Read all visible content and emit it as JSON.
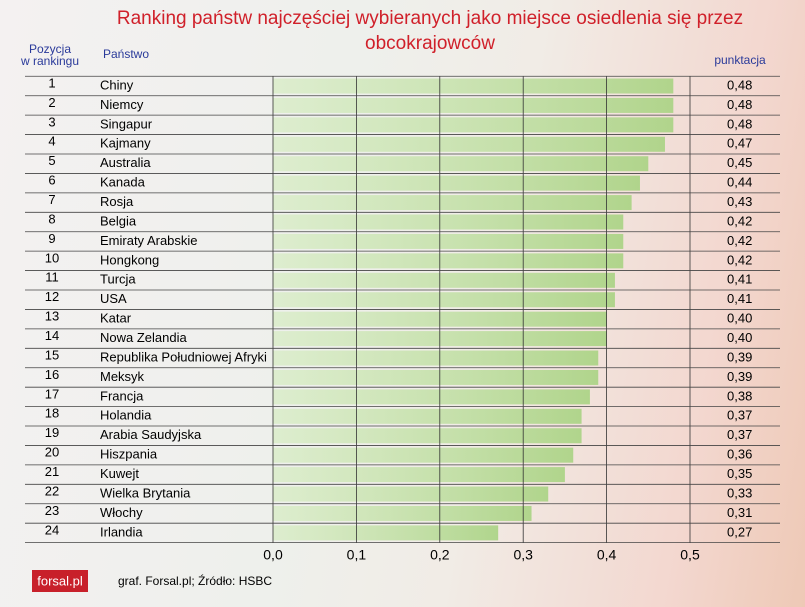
{
  "chart_data": {
    "type": "bar",
    "title": "Ranking państw najczęściej wybieranych jako miejsce osiedlenia się przez obcokrajowców",
    "rank_header": [
      "Pozycja",
      "w rankingu"
    ],
    "category_header": "Państwo",
    "value_header": "punktacja",
    "ranks": [
      1,
      2,
      3,
      4,
      5,
      6,
      7,
      8,
      9,
      10,
      11,
      12,
      13,
      14,
      15,
      16,
      17,
      18,
      19,
      20,
      21,
      22,
      23,
      24
    ],
    "categories": [
      "Chiny",
      "Niemcy",
      "Singapur",
      "Kajmany",
      "Australia",
      "Kanada",
      "Rosja",
      "Belgia",
      "Emiraty Arabskie",
      "Hongkong",
      "Turcja",
      "USA",
      "Katar",
      "Nowa Zelandia",
      "Republika Południowej Afryki",
      "Meksyk",
      "Francja",
      "Holandia",
      "Arabia Saudyjska",
      "Hiszpania",
      "Kuwejt",
      "Wielka Brytania",
      "Włochy",
      "Irlandia"
    ],
    "values": [
      0.48,
      0.48,
      0.48,
      0.47,
      0.45,
      0.44,
      0.43,
      0.42,
      0.42,
      0.42,
      0.41,
      0.41,
      0.4,
      0.4,
      0.39,
      0.39,
      0.38,
      0.37,
      0.37,
      0.36,
      0.35,
      0.33,
      0.31,
      0.27
    ],
    "value_labels": [
      "0,48",
      "0,48",
      "0,48",
      "0,47",
      "0,45",
      "0,44",
      "0,43",
      "0,42",
      "0,42",
      "0,42",
      "0,41",
      "0,41",
      "0,40",
      "0,40",
      "0,39",
      "0,39",
      "0,38",
      "0,37",
      "0,37",
      "0,36",
      "0,35",
      "0,33",
      "0,31",
      "0,27"
    ],
    "xlim": [
      0,
      0.5
    ],
    "xticks": [
      {
        "value": 0,
        "label": "0,0"
      },
      {
        "value": 0.1,
        "label": "0,1"
      },
      {
        "value": 0.2,
        "label": "0,2"
      },
      {
        "value": 0.3,
        "label": "0,3"
      },
      {
        "value": 0.4,
        "label": "0,4"
      },
      {
        "value": 0.5,
        "label": "0,5"
      }
    ],
    "color": "#b9dc98",
    "grid": true,
    "source": "graf. Forsal.pl; Źródło: HSBC",
    "logo": "forsal.pl"
  }
}
